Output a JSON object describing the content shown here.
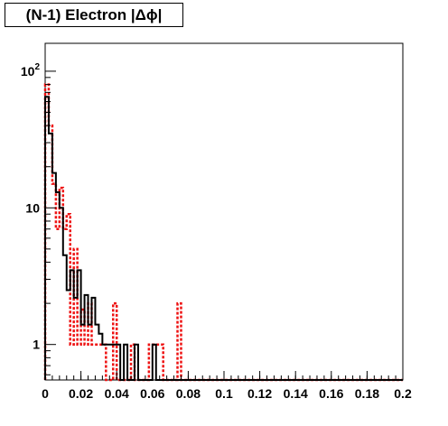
{
  "chart_data": {
    "type": "histogram",
    "title": "(N-1) Electron |Δϕ|",
    "xlabel": "",
    "ylabel": "",
    "xlim": [
      0,
      0.2
    ],
    "ylim": [
      0.55,
      160
    ],
    "y_scale": "log",
    "grid": false,
    "legend": "none",
    "x_ticks": [
      0,
      0.02,
      0.04,
      0.06,
      0.08,
      0.1,
      0.12,
      0.14,
      0.16,
      0.18,
      0.2
    ],
    "x_tick_labels": [
      "0",
      "0.02",
      "0.04",
      "0.06",
      "0.08",
      "0.1",
      "0.12",
      "0.14",
      "0.16",
      "0.18",
      "0.2"
    ],
    "y_ticks": [
      1,
      10,
      100
    ],
    "y_tick_labels": [
      "1",
      "10",
      "10^2"
    ],
    "bin_edges": [
      0,
      0.002,
      0.004,
      0.006,
      0.008,
      0.01,
      0.012,
      0.014,
      0.016,
      0.018,
      0.02,
      0.022,
      0.024,
      0.026,
      0.028,
      0.03,
      0.032,
      0.034,
      0.036,
      0.038,
      0.04,
      0.042,
      0.044,
      0.046,
      0.048,
      0.05,
      0.052,
      0.054,
      0.056,
      0.058,
      0.06,
      0.062,
      0.064,
      0.066,
      0.068,
      0.07,
      0.072,
      0.074,
      0.076,
      0.078,
      0.08,
      0.082,
      0.084,
      0.086,
      0.088,
      0.09,
      0.092,
      0.094,
      0.096,
      0.098,
      0.1,
      0.102,
      0.104,
      0.106,
      0.108,
      0.11,
      0.112,
      0.114,
      0.116,
      0.118,
      0.12,
      0.122,
      0.124,
      0.126,
      0.128,
      0.13,
      0.132,
      0.134,
      0.136,
      0.138,
      0.14,
      0.142,
      0.144,
      0.146,
      0.148,
      0.15,
      0.152,
      0.154,
      0.156,
      0.158,
      0.16,
      0.162,
      0.164,
      0.166,
      0.168,
      0.17,
      0.172,
      0.174,
      0.176,
      0.178,
      0.18,
      0.182,
      0.184,
      0.186,
      0.188,
      0.19,
      0.192,
      0.194,
      0.196,
      0.198,
      0.2
    ],
    "series": [
      {
        "name": "",
        "color": "#000000",
        "style": "solid",
        "values": [
          65,
          35,
          18,
          13,
          10,
          4.5,
          2.5,
          3.5,
          2.2,
          3.5,
          1.4,
          2.3,
          1.4,
          2.2,
          1.4,
          1.2,
          1.0,
          1.0,
          1.0,
          1.0,
          1.0,
          0.5,
          1.0,
          0.5,
          0.5,
          1.0,
          0.5,
          0.5,
          0.5,
          0.5,
          1.0,
          0.5,
          0.5,
          0.5,
          0.5,
          0.5,
          0.5,
          0.5,
          0.5,
          0.5,
          0.5,
          0.5,
          0.5,
          0.5,
          0.5,
          0.5,
          0.52,
          0.5,
          0.5,
          0.5,
          0.5,
          0.5,
          0.5,
          0.5,
          0.5,
          0.5,
          0.5,
          0.5,
          0.5,
          0.5,
          0.5,
          0.5,
          0.5,
          0.5,
          0.5,
          0.5,
          0.5,
          0.5,
          0.5,
          0.5,
          0.5,
          0.5,
          0.5,
          0.5,
          0.5,
          0.5,
          0.5,
          0.5,
          0.5,
          0.5,
          0.5,
          0.5,
          0.5,
          0.5,
          0.5,
          0.5,
          0.5,
          0.5,
          0.5,
          0.5,
          0.5,
          0.5,
          0.5,
          0.5,
          0.5,
          0.5,
          0.5,
          0.5,
          0.5,
          0.5
        ]
      },
      {
        "name": "",
        "color": "#ee1111",
        "style": "dashed",
        "values": [
          80,
          40,
          15,
          7,
          14,
          7,
          9,
          1.0,
          5,
          1.0,
          1.8,
          1.0,
          2.0,
          1.0,
          1.0,
          1.0,
          1.0,
          0.5,
          0.5,
          2.0,
          0.5,
          0.5,
          0.5,
          0.5,
          1.0,
          0.5,
          0.5,
          0.5,
          0.5,
          1.0,
          1.0,
          1.0,
          1.0,
          0.5,
          0.5,
          0.5,
          0.5,
          2.0,
          0.5,
          0.5,
          0.5,
          0.5,
          0.5,
          0.5,
          0.5,
          0.5,
          0.52,
          0.5,
          0.5,
          0.5,
          0.5,
          0.5,
          0.5,
          0.5,
          0.5,
          0.5,
          0.5,
          0.5,
          0.5,
          0.5,
          0.5,
          0.5,
          0.5,
          0.5,
          0.5,
          0.5,
          0.5,
          0.5,
          0.5,
          0.5,
          0.5,
          0.5,
          0.5,
          0.5,
          0.5,
          0.5,
          0.5,
          0.5,
          0.5,
          0.5,
          0.5,
          0.5,
          0.5,
          0.5,
          0.5,
          0.5,
          0.5,
          0.5,
          0.5,
          0.5,
          0.5,
          0.5,
          0.5,
          0.5,
          0.5,
          0.5,
          0.5,
          0.5,
          0.5,
          0.5
        ]
      }
    ]
  }
}
